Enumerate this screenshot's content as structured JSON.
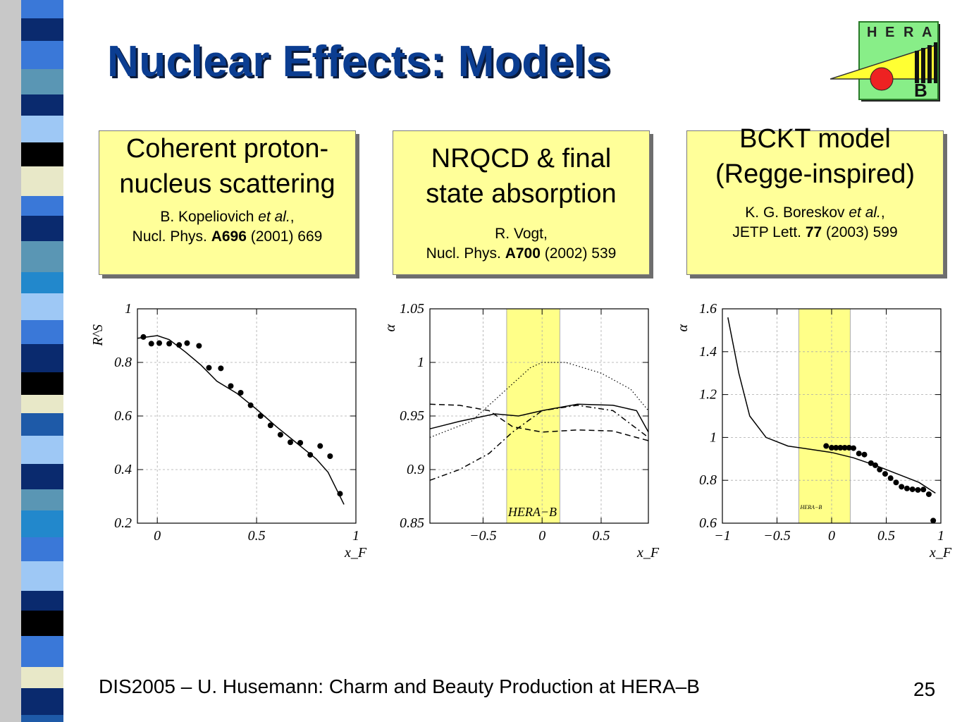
{
  "title": "Nuclear Effects: Models",
  "logo": {
    "letters": [
      "H",
      "E",
      "R",
      "A"
    ],
    "sub": "B"
  },
  "boxes": [
    {
      "head1": "Coherent proton-",
      "head2": "nucleus scattering",
      "author": "B. Kopeliovich ",
      "etal": "et al.",
      "author_tail": ",",
      "journal": "Nucl. Phys. ",
      "volume": "A696",
      "year": " (2001) 669"
    },
    {
      "head1": "NRQCD & final",
      "head2": "state absorption",
      "author": "R. Vogt,",
      "journal": "Nucl. Phys. ",
      "volume": "A700",
      "year": " (2002) 539"
    },
    {
      "head1": "BCKT model",
      "head2": "(Regge-inspired)",
      "author": "K. G. Boreskov ",
      "etal": "et al.",
      "author_tail": ",",
      "journal": "JETP Lett. ",
      "volume": "77",
      "year": " (2003) 599"
    }
  ],
  "footer": "DIS2005 – U. Husemann: Charm and Beauty Production at HERA–B",
  "page_number": "25",
  "chart_data": [
    {
      "type": "scatter",
      "ylabel": "R^S",
      "xlabel": "x_F",
      "xlim": [
        -0.1,
        1.0
      ],
      "ylim": [
        0.2,
        1.0
      ],
      "xticks": [
        "0",
        "0.5",
        "1"
      ],
      "yticks": [
        "0.2",
        "0.4",
        "0.6",
        "0.8",
        "1"
      ],
      "grid": true,
      "points": [
        {
          "x": -0.07,
          "y": 0.895
        },
        {
          "x": -0.03,
          "y": 0.87
        },
        {
          "x": 0.01,
          "y": 0.872
        },
        {
          "x": 0.06,
          "y": 0.87
        },
        {
          "x": 0.11,
          "y": 0.865
        },
        {
          "x": 0.15,
          "y": 0.872
        },
        {
          "x": 0.21,
          "y": 0.862
        },
        {
          "x": 0.26,
          "y": 0.78
        },
        {
          "x": 0.32,
          "y": 0.778
        },
        {
          "x": 0.37,
          "y": 0.712
        },
        {
          "x": 0.42,
          "y": 0.687
        },
        {
          "x": 0.47,
          "y": 0.64
        },
        {
          "x": 0.52,
          "y": 0.6
        },
        {
          "x": 0.57,
          "y": 0.565
        },
        {
          "x": 0.62,
          "y": 0.53
        },
        {
          "x": 0.67,
          "y": 0.502
        },
        {
          "x": 0.72,
          "y": 0.5
        },
        {
          "x": 0.77,
          "y": 0.455
        },
        {
          "x": 0.82,
          "y": 0.488
        },
        {
          "x": 0.87,
          "y": 0.45
        },
        {
          "x": 0.92,
          "y": 0.31
        }
      ],
      "curve": [
        {
          "x": -0.1,
          "y": 0.89
        },
        {
          "x": 0.0,
          "y": 0.9
        },
        {
          "x": 0.06,
          "y": 0.885
        },
        {
          "x": 0.14,
          "y": 0.84
        },
        {
          "x": 0.22,
          "y": 0.79
        },
        {
          "x": 0.3,
          "y": 0.73
        },
        {
          "x": 0.4,
          "y": 0.685
        },
        {
          "x": 0.5,
          "y": 0.625
        },
        {
          "x": 0.6,
          "y": 0.56
        },
        {
          "x": 0.7,
          "y": 0.5
        },
        {
          "x": 0.8,
          "y": 0.44
        },
        {
          "x": 0.86,
          "y": 0.39
        },
        {
          "x": 0.9,
          "y": 0.33
        },
        {
          "x": 0.94,
          "y": 0.27
        }
      ]
    },
    {
      "type": "line",
      "ylabel": "α",
      "xlabel": "x_F",
      "xlim": [
        -0.95,
        0.9
      ],
      "ylim": [
        0.85,
        1.05
      ],
      "xticks": [
        "−0.5",
        "0",
        "0.5"
      ],
      "yticks": [
        "0.85",
        "0.9",
        "0.95",
        "1",
        "1.05"
      ],
      "band": {
        "x": [
          -0.3,
          0.15
        ],
        "color": "#ffff88",
        "label": "HERA−B"
      },
      "grid": true,
      "series": [
        {
          "style": "solid",
          "x": [
            -0.95,
            -0.7,
            -0.4,
            -0.2,
            0.0,
            0.3,
            0.6,
            0.8,
            0.9
          ],
          "y": [
            0.938,
            0.945,
            0.952,
            0.95,
            0.955,
            0.961,
            0.96,
            0.955,
            0.935
          ]
        },
        {
          "style": "dotted",
          "x": [
            -0.95,
            -0.6,
            -0.3,
            -0.1,
            0.0,
            0.2,
            0.5,
            0.75,
            0.9
          ],
          "y": [
            0.93,
            0.945,
            0.975,
            0.995,
            1.0,
            1.0,
            0.99,
            0.975,
            0.955
          ]
        },
        {
          "style": "dashed",
          "x": [
            -0.95,
            -0.7,
            -0.45,
            -0.25,
            0.0,
            0.3,
            0.6,
            0.9
          ],
          "y": [
            0.961,
            0.96,
            0.955,
            0.94,
            0.935,
            0.937,
            0.936,
            0.927
          ]
        },
        {
          "style": "dashdot",
          "x": [
            -0.95,
            -0.7,
            -0.45,
            -0.25,
            0.0,
            0.3,
            0.6,
            0.9
          ],
          "y": [
            0.89,
            0.9,
            0.915,
            0.935,
            0.955,
            0.96,
            0.955,
            0.93
          ]
        }
      ]
    },
    {
      "type": "scatter",
      "ylabel": "α",
      "xlabel": "x_F",
      "xlim": [
        -1.0,
        1.0
      ],
      "ylim": [
        0.6,
        1.6
      ],
      "xticks": [
        "−1",
        "−0.5",
        "0",
        "0.5",
        "1"
      ],
      "yticks": [
        "0.6",
        "0.8",
        "1",
        "1.2",
        "1.4",
        "1.6"
      ],
      "band": {
        "x": [
          -0.3,
          0.17
        ],
        "color": "#ffff88",
        "label": "HERA−B"
      },
      "grid": true,
      "points": [
        {
          "x": -0.05,
          "y": 0.96
        },
        {
          "x": 0.0,
          "y": 0.952
        },
        {
          "x": 0.04,
          "y": 0.952
        },
        {
          "x": 0.08,
          "y": 0.952
        },
        {
          "x": 0.12,
          "y": 0.952
        },
        {
          "x": 0.16,
          "y": 0.952
        },
        {
          "x": 0.2,
          "y": 0.95
        },
        {
          "x": 0.25,
          "y": 0.925
        },
        {
          "x": 0.3,
          "y": 0.92
        },
        {
          "x": 0.36,
          "y": 0.88
        },
        {
          "x": 0.4,
          "y": 0.87
        },
        {
          "x": 0.44,
          "y": 0.85
        },
        {
          "x": 0.49,
          "y": 0.83
        },
        {
          "x": 0.54,
          "y": 0.81
        },
        {
          "x": 0.59,
          "y": 0.79
        },
        {
          "x": 0.64,
          "y": 0.77
        },
        {
          "x": 0.69,
          "y": 0.762
        },
        {
          "x": 0.74,
          "y": 0.758
        },
        {
          "x": 0.79,
          "y": 0.755
        },
        {
          "x": 0.84,
          "y": 0.757
        },
        {
          "x": 0.89,
          "y": 0.735
        },
        {
          "x": 0.93,
          "y": 0.612
        }
      ],
      "curve": [
        {
          "x": -0.95,
          "y": 1.56
        },
        {
          "x": -0.85,
          "y": 1.3
        },
        {
          "x": -0.75,
          "y": 1.1
        },
        {
          "x": -0.6,
          "y": 1.0
        },
        {
          "x": -0.4,
          "y": 0.96
        },
        {
          "x": -0.2,
          "y": 0.945
        },
        {
          "x": 0.0,
          "y": 0.93
        },
        {
          "x": 0.2,
          "y": 0.905
        },
        {
          "x": 0.4,
          "y": 0.87
        },
        {
          "x": 0.6,
          "y": 0.83
        },
        {
          "x": 0.8,
          "y": 0.79
        },
        {
          "x": 0.95,
          "y": 0.74
        }
      ]
    }
  ]
}
